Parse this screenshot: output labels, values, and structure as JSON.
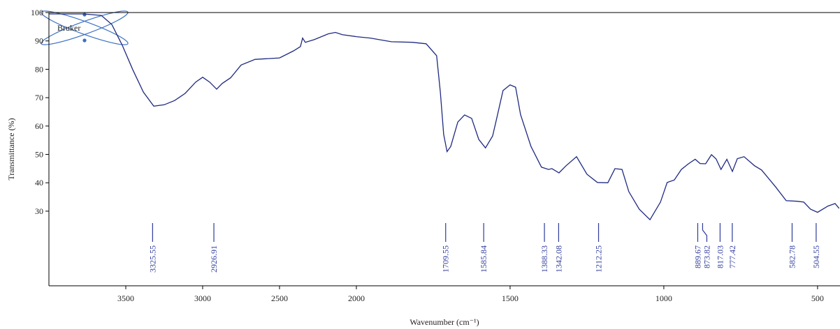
{
  "chart_data": {
    "type": "line",
    "brand": "Bruker",
    "x_label": "Wavenumber (cm⁻¹)",
    "y_label": "Transmittance (%)",
    "xlim": [
      4000,
      427
    ],
    "xticks": [
      3500,
      3000,
      2500,
      2000,
      1500,
      1000,
      500
    ],
    "x_scale_break": {
      "at": 2000,
      "factor": 2
    },
    "ylim": [
      3.7,
      100
    ],
    "yticks": [
      30,
      40,
      50,
      60,
      70,
      80,
      90,
      100
    ],
    "color": "#1f2a80",
    "peak_color": "#2e3b9c",
    "peaks": [
      3325.55,
      2926.91,
      1709.55,
      1585.84,
      1388.33,
      1342.08,
      1212.25,
      889.67,
      873.82,
      817.03,
      777.42,
      582.78,
      504.55
    ],
    "x": [
      4000,
      3773,
      3659,
      3591,
      3523,
      3455,
      3386,
      3318,
      3250,
      3182,
      3114,
      3045,
      3000,
      2955,
      2909,
      2873,
      2818,
      2750,
      2659,
      2500,
      2409,
      2364,
      2350,
      2332,
      2273,
      2182,
      2136,
      2091,
      2000,
      1955,
      1886,
      1818,
      1773,
      1739,
      1727,
      1716,
      1705,
      1693,
      1670,
      1648,
      1625,
      1602,
      1580,
      1557,
      1545,
      1523,
      1500,
      1482,
      1466,
      1432,
      1398,
      1375,
      1364,
      1341,
      1318,
      1284,
      1250,
      1216,
      1182,
      1159,
      1136,
      1114,
      1080,
      1045,
      1011,
      989,
      966,
      943,
      920,
      898,
      882,
      864,
      845,
      830,
      814,
      795,
      777,
      761,
      739,
      705,
      682,
      636,
      602,
      568,
      545,
      523,
      500,
      466,
      443,
      430
    ],
    "values": [
      99.5,
      99.5,
      99,
      95.8,
      88.5,
      79.9,
      72,
      67,
      67.5,
      69,
      71.5,
      75.5,
      77.2,
      75.5,
      73,
      75,
      77,
      81.5,
      83.5,
      84,
      86.5,
      88,
      91,
      89.5,
      90.5,
      92.5,
      93,
      92.2,
      91.5,
      91,
      89.7,
      89.5,
      89,
      84.8,
      72,
      57,
      51,
      52.8,
      61.4,
      63.9,
      62.7,
      55.3,
      52.3,
      56.5,
      62,
      72.5,
      74.5,
      73.7,
      64,
      52.8,
      45.5,
      44.7,
      45,
      43.5,
      46,
      49.2,
      43,
      40.1,
      40,
      45,
      44.7,
      36.9,
      30.7,
      27,
      33.2,
      40.1,
      41,
      44.7,
      46.7,
      48.3,
      46.8,
      46.7,
      49.9,
      48.4,
      44.7,
      48.3,
      44,
      48.5,
      49.2,
      46,
      44.5,
      38.5,
      33.7,
      33.5,
      33.2,
      30.7,
      29.6,
      31.8,
      32.7,
      31
    ]
  }
}
